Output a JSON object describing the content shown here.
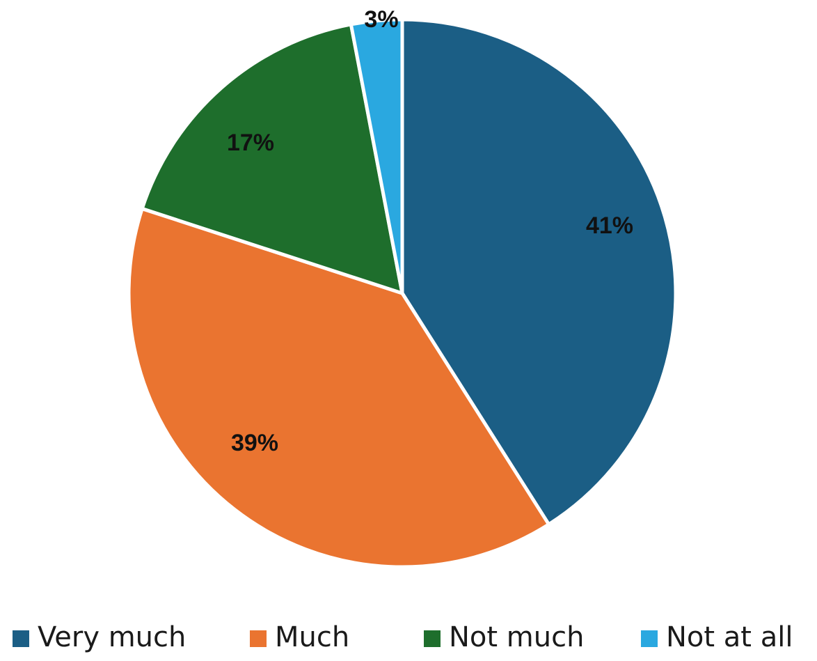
{
  "chart_data": {
    "type": "pie",
    "title": "",
    "slices": [
      {
        "name": "Very much",
        "value": 41,
        "label": "41%",
        "color": "#1b5e85"
      },
      {
        "name": "Much",
        "value": 39,
        "label": "39%",
        "color": "#ea7430"
      },
      {
        "name": "Not much",
        "value": 17,
        "label": "17%",
        "color": "#1e6e2c"
      },
      {
        "name": "Not at all",
        "value": 3,
        "label": "3%",
        "color": "#2aa8e0"
      }
    ],
    "start_angle": "12 o'clock",
    "direction": "clockwise",
    "legend_position": "bottom"
  }
}
